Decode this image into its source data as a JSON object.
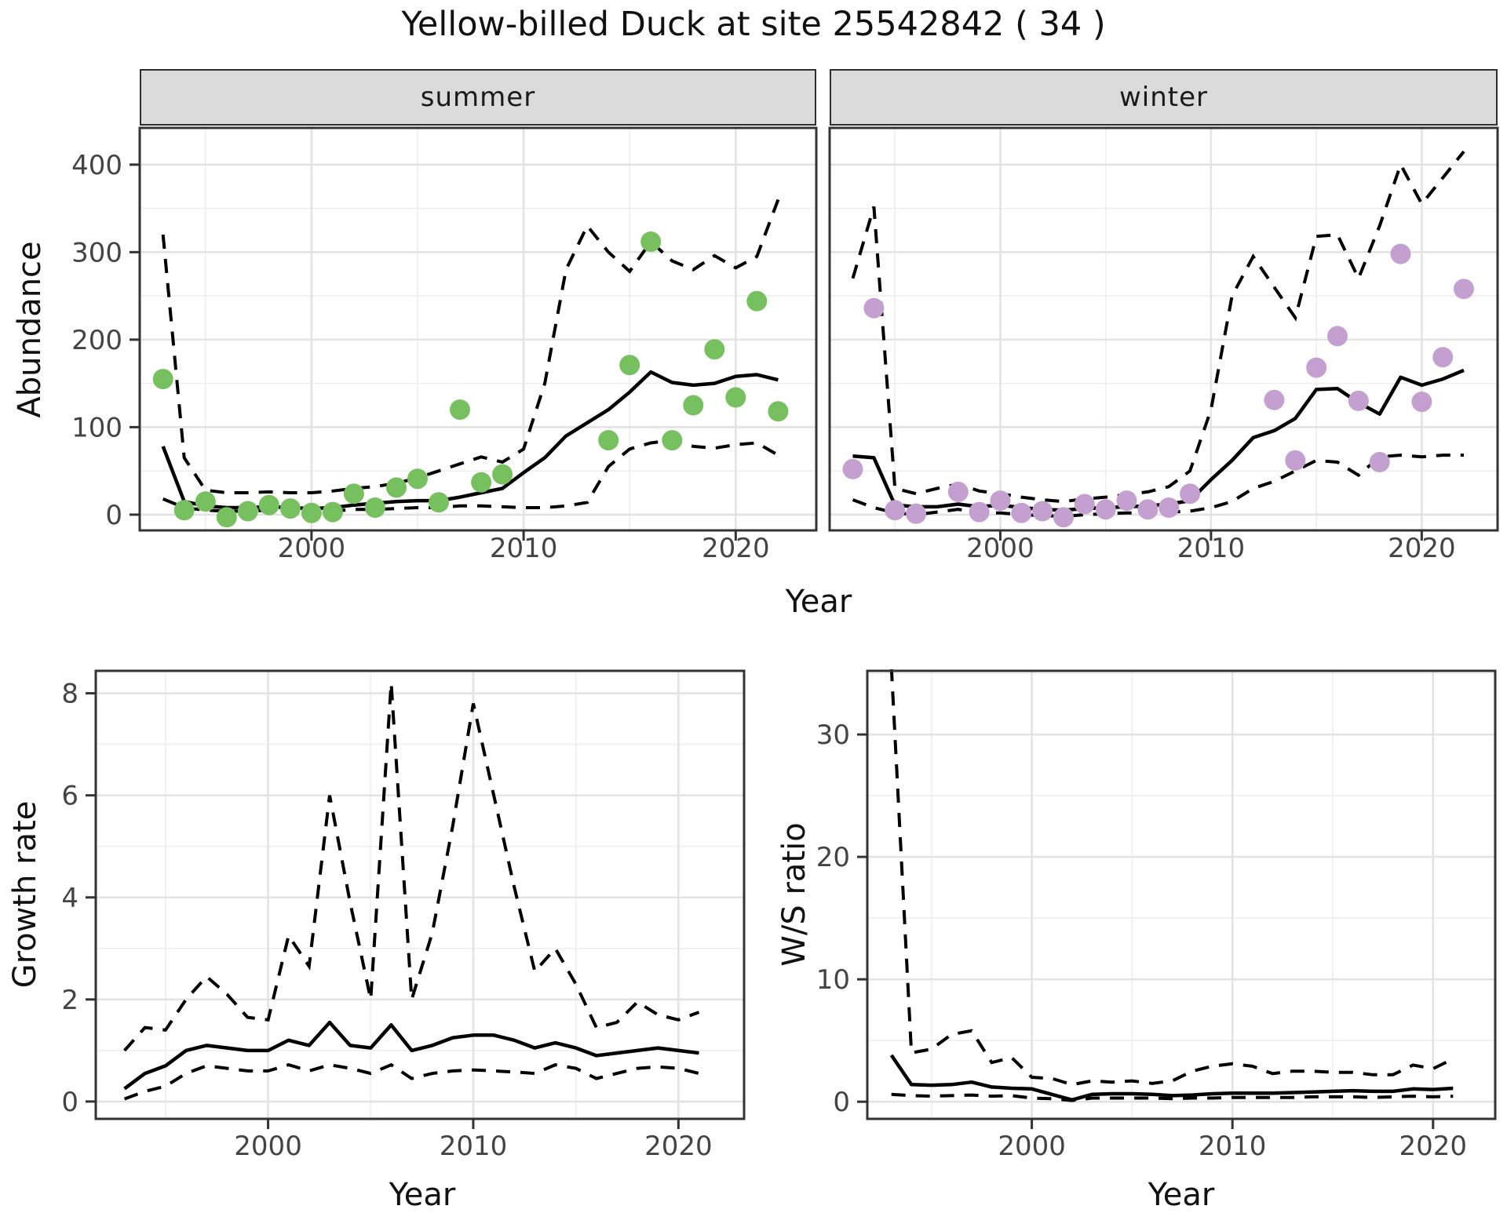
{
  "title": "Yellow-billed Duck at site 25542842 ( 34 )",
  "facets": {
    "summer_label": "summer",
    "winter_label": "winter"
  },
  "axis_titles": {
    "abundance": "Abundance",
    "year_top": "Year",
    "growth": "Growth rate",
    "year_growth": "Year",
    "ws": "W/S ratio",
    "year_ws": "Year"
  },
  "colors": {
    "summer_point": "#77C05F",
    "winter_point": "#C4A0D1",
    "line": "#000000",
    "grid_major": "#E3E3E3",
    "grid_minor": "#EFEFEF",
    "strip_bg": "#DBDBDB",
    "panel_border": "#333333",
    "tick_text": "#444444"
  },
  "chart_data": [
    {
      "key": "summer",
      "type": "line",
      "facet_label": "summer",
      "xlabel": "Year",
      "ylabel": "Abundance",
      "xlim": [
        1991.9,
        2023.8
      ],
      "ylim": [
        -18,
        442
      ],
      "x_ticks": [
        2000,
        2010,
        2020
      ],
      "x_tick_labels": [
        "2000",
        "2010",
        "2020"
      ],
      "x_minor": [
        1995,
        2005,
        2015
      ],
      "y_ticks": [
        0,
        100,
        200,
        300,
        400
      ],
      "y_tick_labels": [
        "0",
        "100",
        "200",
        "300",
        "400"
      ],
      "y_minor": [
        50,
        150,
        250,
        350
      ],
      "show_y_tick_labels": true,
      "years": [
        1993,
        1994,
        1995,
        1996,
        1997,
        1998,
        1999,
        2000,
        2001,
        2002,
        2003,
        2004,
        2005,
        2006,
        2007,
        2008,
        2009,
        2010,
        2011,
        2012,
        2013,
        2014,
        2015,
        2016,
        2017,
        2018,
        2019,
        2020,
        2021,
        2022
      ],
      "mean": [
        78,
        15,
        10,
        8,
        8,
        9,
        8,
        7,
        8,
        11,
        13,
        15,
        16,
        16,
        20,
        25,
        30,
        48,
        65,
        90,
        105,
        120,
        140,
        163,
        151,
        148,
        150,
        158,
        160,
        154
      ],
      "upper": [
        320,
        65,
        28,
        25,
        25,
        26,
        25,
        25,
        27,
        30,
        32,
        36,
        42,
        50,
        58,
        66,
        60,
        75,
        150,
        280,
        330,
        300,
        278,
        312,
        290,
        280,
        296,
        282,
        295,
        360
      ],
      "lower": [
        18,
        8,
        5,
        4,
        4,
        5,
        4,
        4,
        4,
        6,
        6,
        7,
        8,
        8,
        10,
        10,
        9,
        8,
        8,
        10,
        14,
        55,
        75,
        82,
        85,
        78,
        76,
        80,
        82,
        68
      ],
      "points": {
        "label": "observed summer counts",
        "color_key": "summer_point",
        "years": [
          1993,
          1994,
          1995,
          1996,
          1997,
          1998,
          1999,
          2000,
          2001,
          2002,
          2003,
          2004,
          2005,
          2006,
          2007,
          2008,
          2009,
          2014,
          2015,
          2016,
          2017,
          2018,
          2019,
          2020,
          2021,
          2022
        ],
        "values": [
          155,
          5,
          15,
          -3,
          4,
          11,
          7,
          2,
          3,
          24,
          8,
          31,
          41,
          14,
          120,
          37,
          46,
          85,
          171,
          312,
          85,
          125,
          189,
          134,
          244,
          118
        ]
      }
    },
    {
      "key": "winter",
      "type": "line",
      "facet_label": "winter",
      "xlabel": "Year",
      "ylabel": "Abundance",
      "xlim": [
        1991.9,
        2023.6
      ],
      "ylim": [
        -18,
        442
      ],
      "x_ticks": [
        2000,
        2010,
        2020
      ],
      "x_tick_labels": [
        "2000",
        "2010",
        "2020"
      ],
      "x_minor": [
        1995,
        2005,
        2015
      ],
      "y_ticks": [
        0,
        100,
        200,
        300,
        400
      ],
      "y_tick_labels": [
        "0",
        "100",
        "200",
        "300",
        "400"
      ],
      "y_minor": [
        50,
        150,
        250,
        350
      ],
      "show_y_tick_labels": false,
      "years": [
        1993,
        1994,
        1995,
        1996,
        1997,
        1998,
        1999,
        2000,
        2001,
        2002,
        2003,
        2004,
        2005,
        2006,
        2007,
        2008,
        2009,
        2010,
        2011,
        2012,
        2013,
        2014,
        2015,
        2016,
        2017,
        2018,
        2019,
        2020,
        2021,
        2022
      ],
      "mean": [
        67,
        65,
        11,
        9,
        9,
        12,
        9,
        11,
        8,
        6,
        5,
        7,
        8,
        9,
        10,
        12,
        16,
        40,
        62,
        88,
        96,
        110,
        143,
        144,
        128,
        115,
        157,
        148,
        155,
        165
      ],
      "upper": [
        270,
        352,
        30,
        24,
        30,
        35,
        27,
        24,
        20,
        17,
        15,
        18,
        20,
        23,
        26,
        32,
        50,
        120,
        250,
        295,
        260,
        225,
        318,
        320,
        270,
        330,
        400,
        355,
        385,
        415
      ],
      "lower": [
        17,
        8,
        2,
        0,
        3,
        6,
        2,
        2,
        0,
        -1,
        -2,
        0,
        1,
        2,
        2,
        3,
        4,
        8,
        15,
        30,
        38,
        50,
        62,
        60,
        45,
        66,
        68,
        66,
        68,
        68
      ],
      "points": {
        "label": "observed winter counts",
        "color_key": "winter_point",
        "years": [
          1993,
          1994,
          1995,
          1996,
          1998,
          1999,
          2000,
          2001,
          2002,
          2003,
          2004,
          2005,
          2006,
          2007,
          2008,
          2009,
          2013,
          2014,
          2015,
          2016,
          2017,
          2018,
          2019,
          2020,
          2021,
          2022
        ],
        "values": [
          52,
          236,
          5,
          1,
          26,
          3,
          16,
          2,
          4,
          -3,
          12,
          6,
          16,
          6,
          8,
          24,
          131,
          62,
          168,
          204,
          130,
          60,
          298,
          129,
          180,
          258
        ]
      }
    },
    {
      "key": "growth",
      "type": "line",
      "facet_label": null,
      "xlabel": "Year",
      "ylabel": "Growth rate",
      "xlim": [
        1991.6,
        2023.2
      ],
      "ylim": [
        -0.34,
        8.44
      ],
      "x_ticks": [
        2000,
        2010,
        2020
      ],
      "x_tick_labels": [
        "2000",
        "2010",
        "2020"
      ],
      "x_minor": [
        1995,
        2005,
        2015
      ],
      "y_ticks": [
        0,
        2,
        4,
        6,
        8
      ],
      "y_tick_labels": [
        "0",
        "2",
        "4",
        "6",
        "8"
      ],
      "y_minor": [
        1,
        3,
        5,
        7
      ],
      "show_y_tick_labels": true,
      "years": [
        1993,
        1994,
        1995,
        1996,
        1997,
        1998,
        1999,
        2000,
        2001,
        2002,
        2003,
        2004,
        2005,
        2006,
        2007,
        2008,
        2009,
        2010,
        2011,
        2012,
        2013,
        2014,
        2015,
        2016,
        2017,
        2018,
        2019,
        2020,
        2021
      ],
      "mean": [
        0.25,
        0.55,
        0.7,
        1.0,
        1.1,
        1.05,
        1.0,
        1.0,
        1.2,
        1.1,
        1.55,
        1.1,
        1.05,
        1.5,
        1.0,
        1.1,
        1.25,
        1.3,
        1.3,
        1.2,
        1.05,
        1.15,
        1.05,
        0.9,
        0.95,
        1.0,
        1.05,
        1.0,
        0.95
      ],
      "upper": [
        1.0,
        1.45,
        1.4,
        2.0,
        2.45,
        2.1,
        1.65,
        1.6,
        3.25,
        2.65,
        6.0,
        3.9,
        2.0,
        8.2,
        2.0,
        3.3,
        5.4,
        7.8,
        6.0,
        4.2,
        2.55,
        3.0,
        2.3,
        1.45,
        1.55,
        1.95,
        1.7,
        1.6,
        1.75
      ],
      "lower": [
        0.05,
        0.2,
        0.3,
        0.55,
        0.7,
        0.65,
        0.6,
        0.6,
        0.72,
        0.6,
        0.72,
        0.65,
        0.55,
        0.72,
        0.45,
        0.55,
        0.6,
        0.62,
        0.6,
        0.58,
        0.55,
        0.72,
        0.65,
        0.45,
        0.55,
        0.65,
        0.68,
        0.65,
        0.55
      ],
      "points": null
    },
    {
      "key": "ws",
      "type": "line",
      "facet_label": null,
      "xlabel": "Year",
      "ylabel": "W/S ratio",
      "xlim": [
        1991.8,
        2023.1
      ],
      "ylim": [
        -1.4,
        35.2
      ],
      "x_ticks": [
        2000,
        2010,
        2020
      ],
      "x_tick_labels": [
        "2000",
        "2010",
        "2020"
      ],
      "x_minor": [
        1995,
        2005,
        2015
      ],
      "y_ticks": [
        0,
        10,
        20,
        30
      ],
      "y_tick_labels": [
        "0",
        "10",
        "20",
        "30"
      ],
      "y_minor": [
        5,
        15,
        25,
        35
      ],
      "show_y_tick_labels": true,
      "years": [
        1993,
        1994,
        1995,
        1996,
        1997,
        1998,
        1999,
        2000,
        2001,
        2002,
        2003,
        2004,
        2005,
        2006,
        2007,
        2008,
        2009,
        2010,
        2011,
        2012,
        2013,
        2014,
        2015,
        2016,
        2017,
        2018,
        2019,
        2020,
        2021
      ],
      "mean": [
        3.8,
        1.4,
        1.35,
        1.4,
        1.6,
        1.2,
        1.1,
        1.05,
        0.6,
        0.15,
        0.6,
        0.65,
        0.65,
        0.6,
        0.5,
        0.55,
        0.65,
        0.7,
        0.7,
        0.7,
        0.75,
        0.8,
        0.85,
        0.9,
        0.85,
        0.85,
        1.05,
        1.0,
        1.1
      ],
      "upper": [
        35.5,
        4.0,
        4.3,
        5.5,
        5.8,
        3.2,
        3.6,
        2.0,
        1.9,
        1.4,
        1.7,
        1.6,
        1.7,
        1.5,
        1.7,
        2.5,
        2.9,
        3.1,
        2.9,
        2.3,
        2.5,
        2.5,
        2.4,
        2.4,
        2.2,
        2.2,
        3.0,
        2.7,
        3.5
      ],
      "lower": [
        0.6,
        0.5,
        0.45,
        0.5,
        0.55,
        0.45,
        0.5,
        0.3,
        0.25,
        0.1,
        0.3,
        0.3,
        0.3,
        0.3,
        0.25,
        0.3,
        0.3,
        0.35,
        0.35,
        0.35,
        0.35,
        0.4,
        0.4,
        0.4,
        0.35,
        0.4,
        0.45,
        0.4,
        0.45
      ],
      "points": null
    }
  ]
}
